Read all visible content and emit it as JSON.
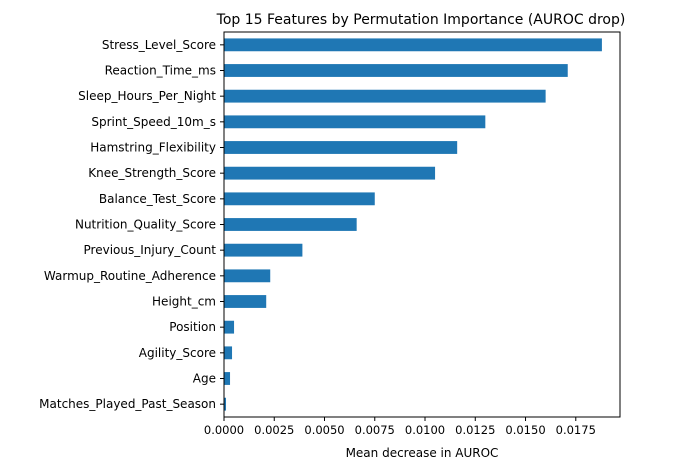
{
  "chart_data": {
    "type": "bar",
    "orientation": "horizontal",
    "title": "Top 15 Features by Permutation Importance (AUROC drop)",
    "xlabel": "Mean decrease in AUROC",
    "ylabel": "",
    "xlim": [
      0,
      0.0197
    ],
    "xticks": [
      0.0,
      0.0025,
      0.005,
      0.0075,
      0.01,
      0.0125,
      0.015,
      0.0175
    ],
    "xtick_labels": [
      "0.0000",
      "0.0025",
      "0.0050",
      "0.0075",
      "0.0100",
      "0.0125",
      "0.0150",
      "0.0175"
    ],
    "grid": false,
    "bar_color": "#1f77b4",
    "categories": [
      "Stress_Level_Score",
      "Reaction_Time_ms",
      "Sleep_Hours_Per_Night",
      "Sprint_Speed_10m_s",
      "Hamstring_Flexibility",
      "Knee_Strength_Score",
      "Balance_Test_Score",
      "Nutrition_Quality_Score",
      "Previous_Injury_Count",
      "Warmup_Routine_Adherence",
      "Height_cm",
      "Position",
      "Agility_Score",
      "Age",
      "Matches_Played_Past_Season"
    ],
    "values": [
      0.0188,
      0.0171,
      0.016,
      0.013,
      0.0116,
      0.0105,
      0.0075,
      0.0066,
      0.0039,
      0.0023,
      0.0021,
      0.0005,
      0.0004,
      0.0003,
      0.0001
    ]
  }
}
